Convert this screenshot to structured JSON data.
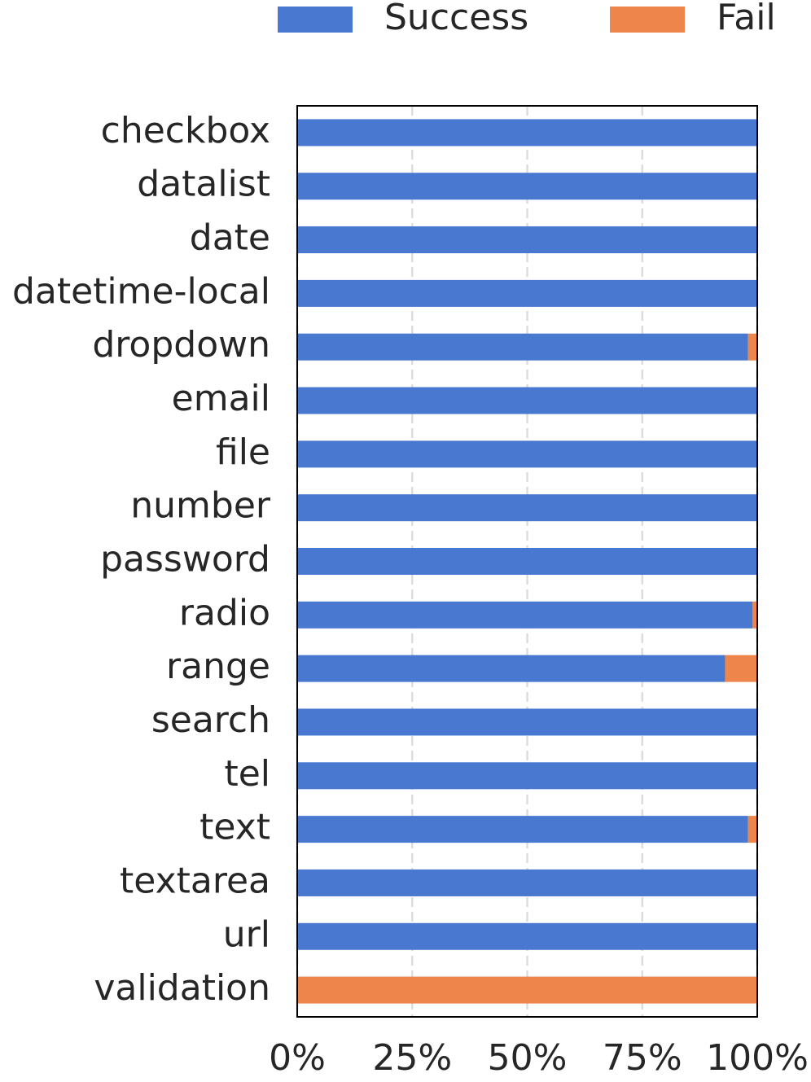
{
  "chart_data": {
    "type": "stacked-barh",
    "categories": [
      "checkbox",
      "datalist",
      "date",
      "datetime-local",
      "dropdown",
      "email",
      "file",
      "number",
      "password",
      "radio",
      "range",
      "search",
      "tel",
      "text",
      "textarea",
      "url",
      "validation"
    ],
    "series": [
      {
        "name": "Success",
        "color": "#4878d0",
        "values": [
          100,
          100,
          100,
          100,
          98,
          100,
          100,
          100,
          100,
          99,
          93,
          100,
          100,
          98,
          100,
          100,
          0
        ]
      },
      {
        "name": "Fail",
        "color": "#ee854a",
        "values": [
          0,
          0,
          0,
          0,
          2,
          0,
          0,
          0,
          0,
          1,
          7,
          0,
          0,
          2,
          0,
          0,
          100
        ]
      }
    ],
    "xlim": [
      0,
      100
    ],
    "xticks": [
      {
        "value": 0,
        "label": "0%"
      },
      {
        "value": 25,
        "label": "25%"
      },
      {
        "value": 50,
        "label": "50%"
      },
      {
        "value": 75,
        "label": "75%"
      },
      {
        "value": 100,
        "label": "100%"
      }
    ],
    "grid": true,
    "legend": "top"
  }
}
